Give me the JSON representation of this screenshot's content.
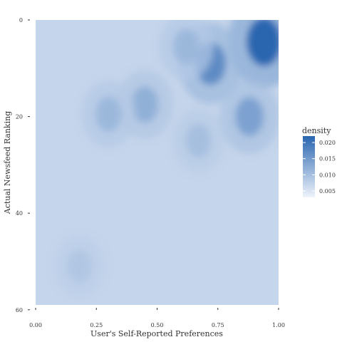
{
  "chart_data": {
    "type": "heatmap",
    "title": "",
    "xlabel": "User's Self-Reported Preferences",
    "ylabel": "Actual Newsfeed Ranking",
    "xlim": [
      0.0,
      1.0
    ],
    "ylim": [
      0,
      59
    ],
    "y_reversed": true,
    "x_ticks": [
      "0.00",
      "0.25",
      "0.50",
      "0.75",
      "1.00"
    ],
    "y_ticks": [
      "0",
      "20",
      "40",
      "60"
    ],
    "grid": false,
    "legend": {
      "title": "density",
      "position": "right",
      "breaks": [
        "0.020",
        "0.015",
        "0.010",
        "0.005"
      ],
      "break_values": [
        0.02,
        0.015,
        0.01,
        0.005
      ],
      "range": [
        0.003,
        0.022
      ],
      "color_low": "#eef3fb",
      "color_high": "#2a66b0"
    },
    "background_density": 0.007,
    "density_peaks": [
      {
        "x": 0.94,
        "y": 4.5,
        "density": 0.022
      },
      {
        "x": 0.72,
        "y": 9,
        "density": 0.017
      },
      {
        "x": 0.88,
        "y": 20,
        "density": 0.014
      },
      {
        "x": 0.45,
        "y": 17.5,
        "density": 0.012
      },
      {
        "x": 0.3,
        "y": 19.5,
        "density": 0.011
      },
      {
        "x": 0.62,
        "y": 5.5,
        "density": 0.011
      },
      {
        "x": 0.67,
        "y": 25,
        "density": 0.01
      },
      {
        "x": 0.18,
        "y": 51,
        "density": 0.009
      }
    ]
  }
}
